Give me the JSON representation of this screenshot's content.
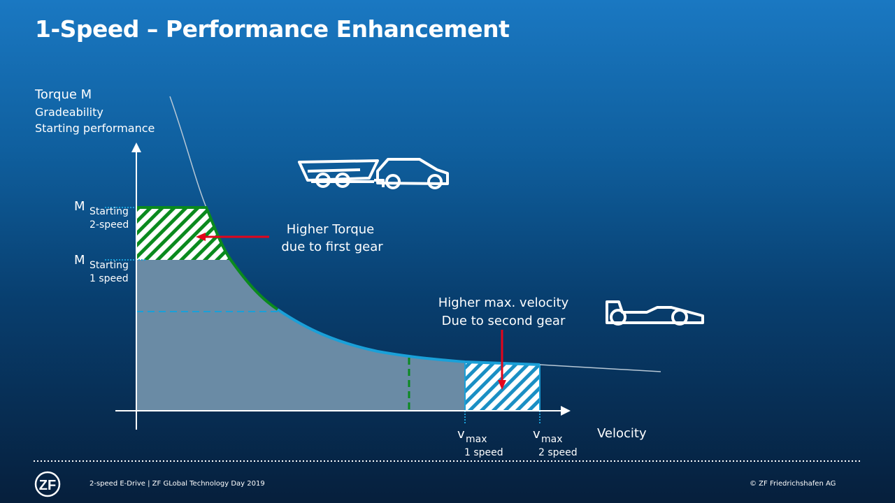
{
  "title": "1-Speed – Performance Enhancement",
  "y_axis": {
    "line1": "Torque M",
    "line2": "Gradeability",
    "line3": "Starting performance"
  },
  "x_axis": {
    "label": "Velocity"
  },
  "m_start_2": {
    "main": "M",
    "sub1": "Starting",
    "sub2": "2-speed"
  },
  "m_start_1": {
    "main": "M",
    "sub1": "Starting",
    "sub2": "1 speed"
  },
  "vmax_1": {
    "main": "v",
    "sub": "max",
    "under": "1 speed"
  },
  "vmax_2": {
    "main": "v",
    "sub": "max",
    "under": "2 speed"
  },
  "annotation_torque": {
    "line1": "Higher Torque",
    "line2": "due to first gear"
  },
  "annotation_velocity": {
    "line1": "Higher max. velocity",
    "line2": "Due to second gear"
  },
  "icons": [
    "car-with-boat-trailer-icon",
    "race-car-icon",
    "zf-logo"
  ],
  "footer": {
    "left": "2-speed E-Drive | ZF GLobal Technology Day 2019",
    "right": "© ZF Friedrichshafen AG",
    "logo": "ZF"
  },
  "colors": {
    "green": "#0a8a1e",
    "blue": "#1aa0d8",
    "red": "#e3051b",
    "shade": "#6a8ba5"
  }
}
